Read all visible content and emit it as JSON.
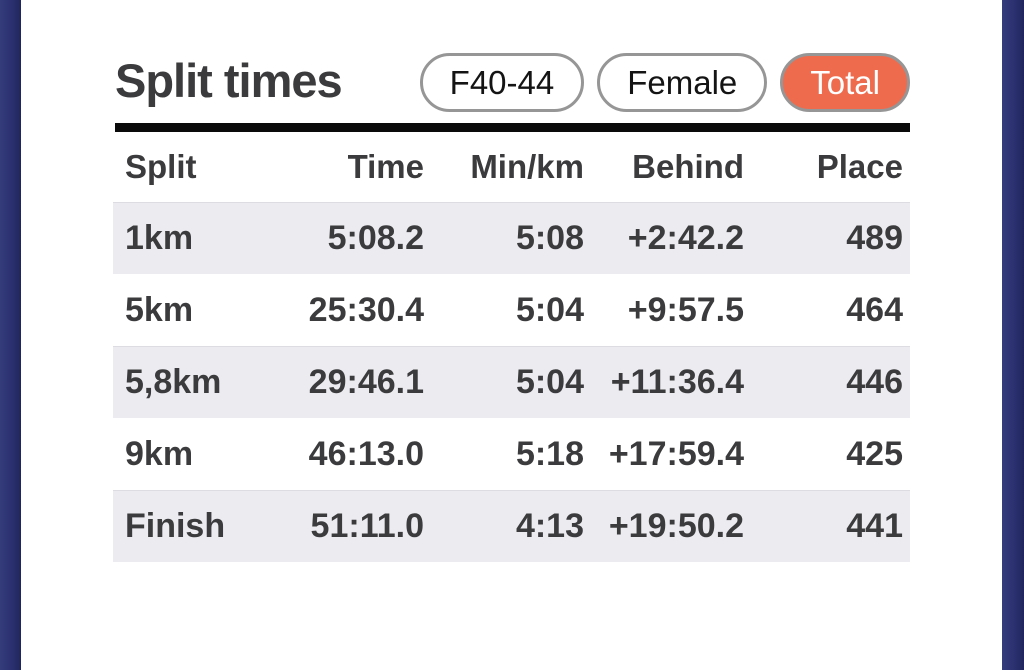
{
  "header": {
    "title": "Split times"
  },
  "filters": [
    {
      "label": "F40-44",
      "active": false
    },
    {
      "label": "Female",
      "active": false
    },
    {
      "label": "Total",
      "active": true
    }
  ],
  "colors": {
    "side_bar": "#2b3170",
    "active_pill_bg": "#ee6b4e",
    "pill_border": "#969696",
    "stripe_row_bg": "#ebebf0",
    "divider": "#0a0a0a",
    "text": "#3b3b3d"
  },
  "table": {
    "columns": [
      "Split",
      "Time",
      "Min/km",
      "Behind",
      "Place"
    ],
    "rows": [
      {
        "split": "1km",
        "time": "5:08.2",
        "min_per_km": "5:08",
        "behind": "+2:42.2",
        "place": "489"
      },
      {
        "split": "5km",
        "time": "25:30.4",
        "min_per_km": "5:04",
        "behind": "+9:57.5",
        "place": "464"
      },
      {
        "split": "5,8km",
        "time": "29:46.1",
        "min_per_km": "5:04",
        "behind": "+11:36.4",
        "place": "446"
      },
      {
        "split": "9km",
        "time": "46:13.0",
        "min_per_km": "5:18",
        "behind": "+17:59.4",
        "place": "425"
      },
      {
        "split": "Finish",
        "time": "51:11.0",
        "min_per_km": "4:13",
        "behind": "+19:50.2",
        "place": "441"
      }
    ]
  }
}
